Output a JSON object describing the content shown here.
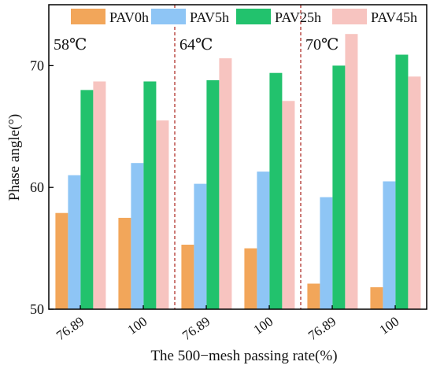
{
  "chart_data": {
    "type": "bar",
    "title": "",
    "xlabel": "The 500−mesh passing rate(%)",
    "ylabel": "Phase angle(°)",
    "ylim": [
      50,
      75
    ],
    "yticks": [
      50,
      60,
      70
    ],
    "legend_position": "top",
    "grid": false,
    "panels": [
      {
        "label": "58℃",
        "categories": [
          "76.89",
          "100"
        ]
      },
      {
        "label": "64℃",
        "categories": [
          "76.89",
          "100"
        ]
      },
      {
        "label": "70℃",
        "categories": [
          "76.89",
          "100"
        ]
      }
    ],
    "categories": [
      "76.89",
      "100",
      "76.89",
      "100",
      "76.89",
      "100"
    ],
    "series": [
      {
        "name": "PAV0h",
        "color": "#F2A65A",
        "values": [
          57.9,
          57.5,
          55.3,
          55.0,
          52.1,
          51.8
        ]
      },
      {
        "name": "PAV5h",
        "color": "#8EC5F5",
        "values": [
          61.0,
          62.0,
          60.3,
          61.3,
          59.2,
          60.5
        ]
      },
      {
        "name": "PAV25h",
        "color": "#22C26D",
        "values": [
          68.0,
          68.7,
          68.8,
          69.4,
          70.0,
          70.9
        ]
      },
      {
        "name": "PAV45h",
        "color": "#F7C4C0",
        "values": [
          68.7,
          65.5,
          70.6,
          67.1,
          72.6,
          69.1
        ]
      }
    ]
  }
}
